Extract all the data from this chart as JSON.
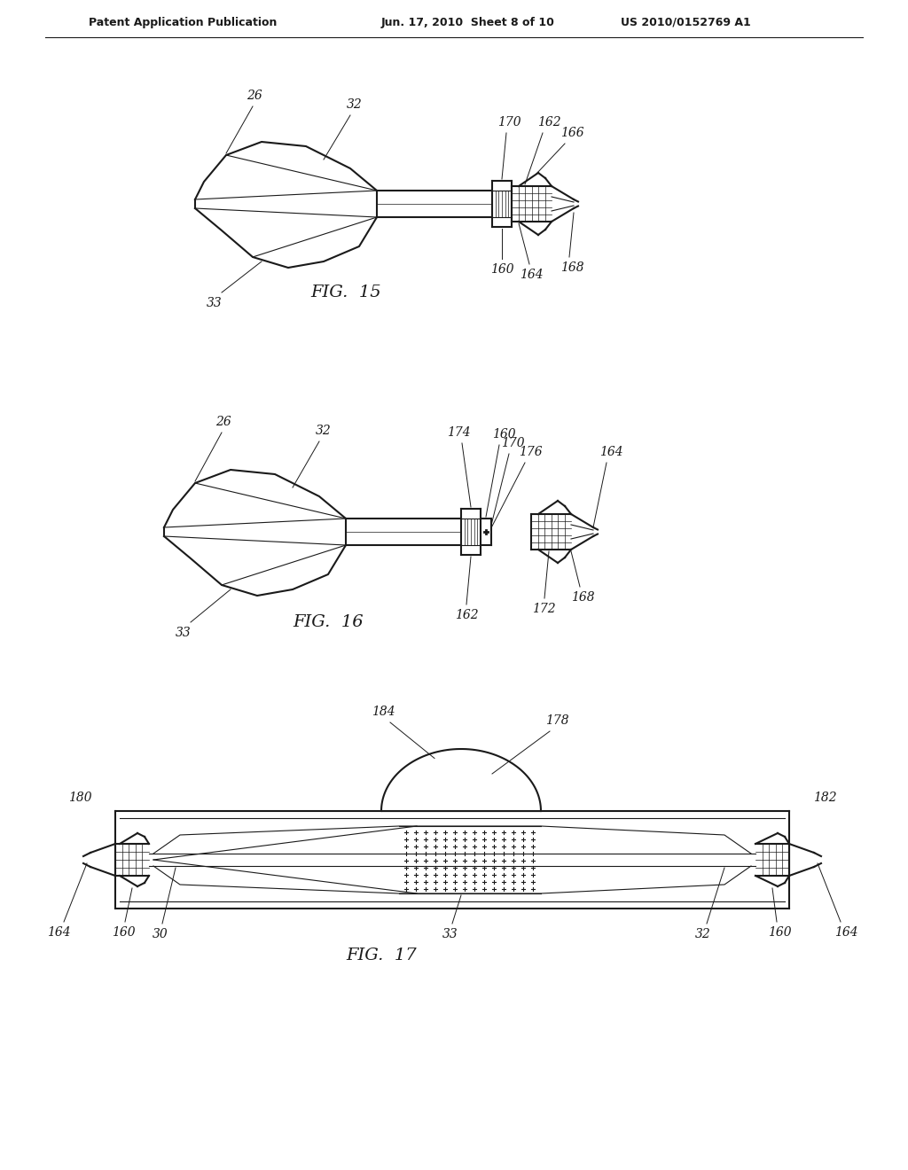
{
  "bg_color": "#ffffff",
  "line_color": "#1a1a1a",
  "header_left": "Patent Application Publication",
  "header_mid": "Jun. 17, 2010  Sheet 8 of 10",
  "header_right": "US 2010/0152769 A1",
  "fig15_title": "FIG.  15",
  "fig16_title": "FIG.  16",
  "fig17_title": "FIG.  17",
  "font_size_labels": 10,
  "font_size_title": 14,
  "font_size_header": 9
}
